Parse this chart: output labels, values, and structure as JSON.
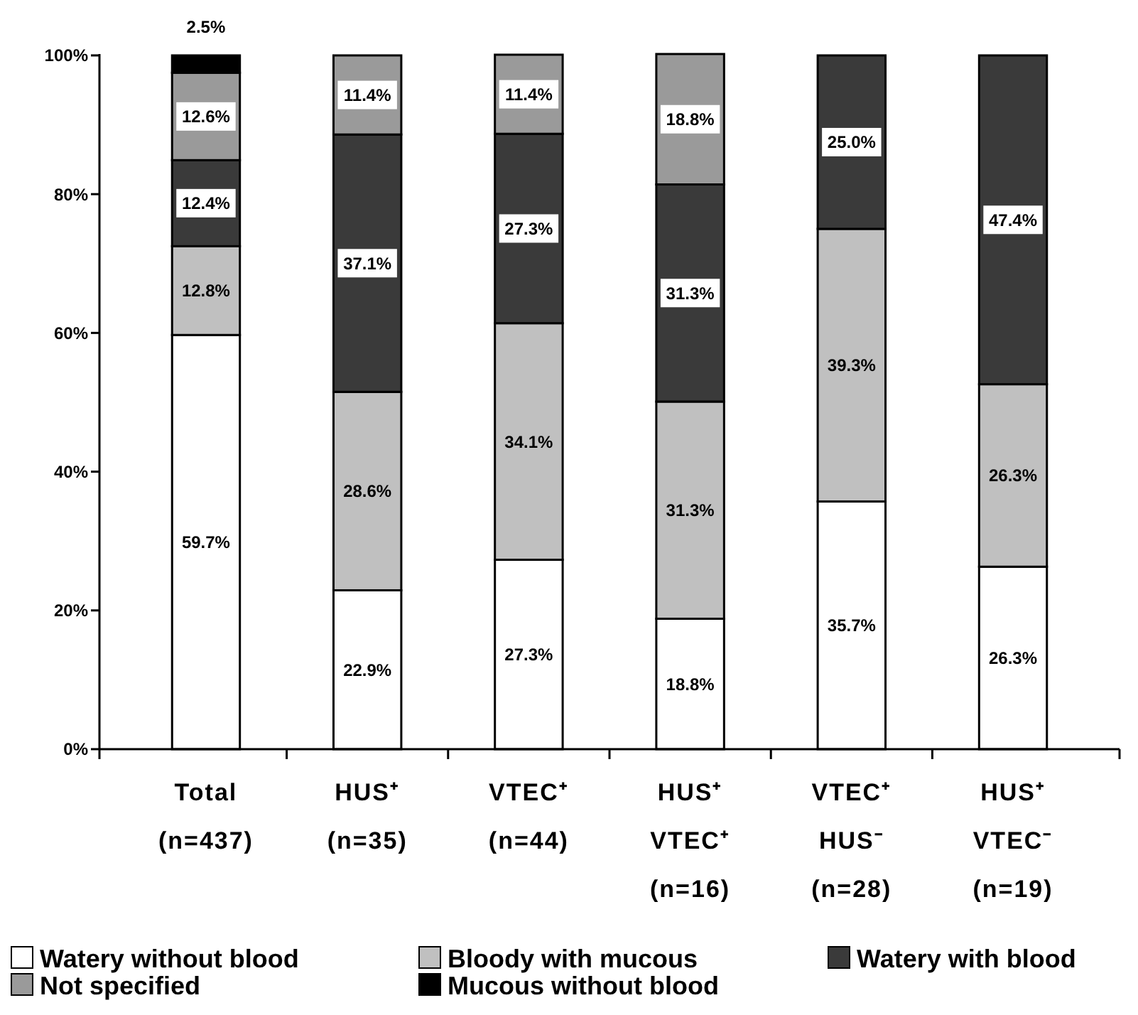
{
  "chart_data": {
    "type": "bar",
    "stacked": true,
    "categories": [
      "Total\n(n=437)",
      "HUS⁺\n(n=35)",
      "VTEC⁺\n(n=44)",
      "HUS⁺\nVTEC⁺\n(n=16)",
      "VTEC⁺\nHUS⁻\n(n=28)",
      "HUS⁺\nVTEC⁻\n(n=19)"
    ],
    "series": [
      {
        "name": "Watery without blood",
        "color": "#ffffff",
        "values": [
          59.7,
          22.9,
          27.3,
          18.8,
          35.7,
          26.3
        ],
        "value_labels": [
          "59.7%",
          "22.9%",
          "27.3%",
          "18.8%",
          "35.7%",
          "26.3%"
        ]
      },
      {
        "name": "Bloody with mucous",
        "color": "#c0c0c0",
        "values": [
          12.8,
          28.6,
          34.1,
          31.3,
          39.3,
          26.3
        ],
        "value_labels": [
          "12.8%",
          "28.6%",
          "34.1%",
          "31.3%",
          "39.3%",
          "26.3%"
        ]
      },
      {
        "name": "Watery with blood",
        "color": "#3a3a3a",
        "values": [
          12.4,
          37.1,
          27.3,
          31.3,
          25.0,
          47.4
        ],
        "value_labels": [
          "12.4%",
          "37.1%",
          "27.3%",
          "31.3%",
          "25.0%",
          "47.4%"
        ]
      },
      {
        "name": "Not specified",
        "color": "#9a9a9a",
        "values": [
          12.6,
          11.4,
          11.4,
          18.8,
          null,
          null
        ],
        "value_labels": [
          "12.6%",
          "11.4%",
          "11.4%",
          "18.8%",
          null,
          null
        ]
      },
      {
        "name": "Mucous without blood",
        "color": "#000000",
        "values": [
          2.5,
          null,
          null,
          null,
          null,
          null
        ],
        "value_labels": [
          "2.5%",
          null,
          null,
          null,
          null,
          null
        ]
      }
    ],
    "ylim": [
      0,
      100.2
    ],
    "yticks": [
      {
        "value": 0,
        "label": "0%"
      },
      {
        "value": 20,
        "label": "20%"
      },
      {
        "value": 40,
        "label": "40%"
      },
      {
        "value": 60,
        "label": "60%"
      },
      {
        "value": 80,
        "label": "80%"
      },
      {
        "value": 100,
        "label": "100%"
      }
    ],
    "grid": false,
    "legend": "bottom"
  }
}
